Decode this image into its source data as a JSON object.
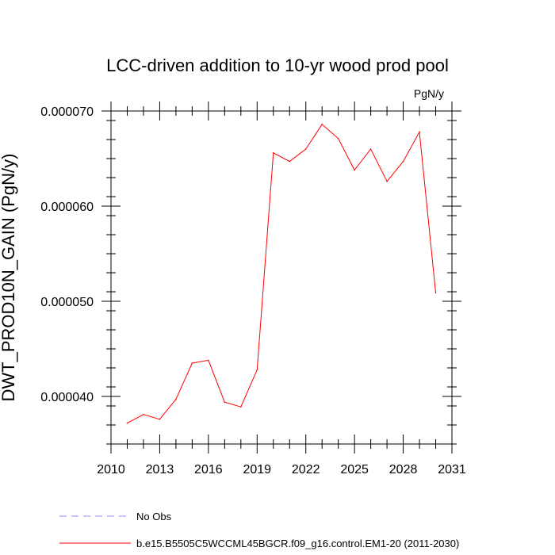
{
  "chart_data": {
    "type": "line",
    "title": "LCC-driven addition to 10-yr wood prod pool",
    "units_label": "PgN/y",
    "ylabel": "DWT_PROD10N_GAIN  (PgN/y)",
    "xlabel": "",
    "xlim": [
      2010,
      2031
    ],
    "ylim": [
      3.5e-05,
      7e-05
    ],
    "x_ticks": [
      2010,
      2013,
      2016,
      2019,
      2022,
      2025,
      2028,
      2031
    ],
    "x_tick_labels": [
      "2010",
      "2013",
      "2016",
      "2019",
      "2022",
      "2025",
      "2028",
      "2031"
    ],
    "y_ticks": [
      4e-05,
      5e-05,
      6e-05,
      7e-05
    ],
    "y_tick_labels": [
      "0.000040",
      "0.000050",
      "0.000060",
      "0.000070"
    ],
    "grid": false,
    "legend_position": "bottom-left",
    "series": [
      {
        "name": "b.e15.B5505C5WCCML45BGCR.f09_g16.control.EM1-20 (2011-2030)",
        "color": "#ff0000",
        "style": "solid",
        "x": [
          2011,
          2012,
          2013,
          2014,
          2015,
          2016,
          2017,
          2018,
          2019,
          2020,
          2021,
          2022,
          2023,
          2024,
          2025,
          2026,
          2027,
          2028,
          2029,
          2030
        ],
        "values": [
          3.72e-05,
          3.81e-05,
          3.76e-05,
          3.97e-05,
          4.35e-05,
          4.38e-05,
          3.94e-05,
          3.89e-05,
          4.28e-05,
          6.56e-05,
          6.47e-05,
          6.6e-05,
          6.86e-05,
          6.71e-05,
          6.38e-05,
          6.6e-05,
          6.26e-05,
          6.47e-05,
          6.78e-05,
          5.09e-05
        ]
      },
      {
        "name": "No Obs",
        "color": "#8c8cff",
        "style": "dashed",
        "x": [],
        "values": []
      }
    ]
  }
}
